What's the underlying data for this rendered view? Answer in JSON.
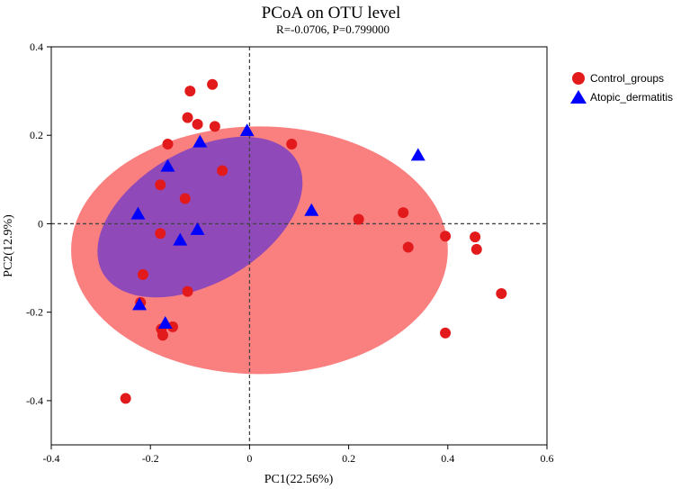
{
  "chart_data": {
    "type": "scatter",
    "title": "PCoA on OTU level",
    "subtitle": "R=-0.0706, P=0.799000",
    "xlabel": "PC1(22.56%)",
    "ylabel": "PC2(12.9%)",
    "xlim": [
      -0.4,
      0.6
    ],
    "ylim": [
      -0.5,
      0.4
    ],
    "xticks": [
      -0.4,
      -0.2,
      0,
      0.2,
      0.4,
      0.6
    ],
    "yticks": [
      -0.4,
      -0.2,
      0,
      0.2,
      0.4
    ],
    "xtick_labels": [
      "-0.4",
      "-0.2",
      "0",
      "0.2",
      "0.4",
      "0.6"
    ],
    "ytick_labels": [
      "-0.4",
      "-0.2",
      "0",
      "0.2",
      "0.4"
    ],
    "reference_lines": {
      "x": 0,
      "y": 0
    },
    "legend_position": "top-right, outside plot",
    "series": [
      {
        "name": "Control_groups",
        "marker": "circle",
        "color": "#e31a1c",
        "ellipse": {
          "center": [
            0.02,
            -0.06
          ],
          "semi_axes": [
            0.38,
            0.28
          ],
          "angle_deg": 0,
          "color": "#fa7f7f"
        },
        "points": [
          {
            "x": -0.12,
            "y": 0.3
          },
          {
            "x": -0.075,
            "y": 0.315
          },
          {
            "x": -0.125,
            "y": 0.24
          },
          {
            "x": -0.105,
            "y": 0.225
          },
          {
            "x": -0.07,
            "y": 0.22
          },
          {
            "x": -0.165,
            "y": 0.18
          },
          {
            "x": 0.085,
            "y": 0.18
          },
          {
            "x": -0.055,
            "y": 0.12
          },
          {
            "x": -0.18,
            "y": 0.088
          },
          {
            "x": -0.13,
            "y": 0.057
          },
          {
            "x": 0.31,
            "y": 0.025
          },
          {
            "x": 0.22,
            "y": 0.01
          },
          {
            "x": -0.18,
            "y": -0.022
          },
          {
            "x": 0.395,
            "y": -0.028
          },
          {
            "x": 0.455,
            "y": -0.03
          },
          {
            "x": 0.32,
            "y": -0.053
          },
          {
            "x": 0.458,
            "y": -0.058
          },
          {
            "x": -0.215,
            "y": -0.115
          },
          {
            "x": -0.125,
            "y": -0.153
          },
          {
            "x": 0.508,
            "y": -0.158
          },
          {
            "x": -0.22,
            "y": -0.178
          },
          {
            "x": -0.155,
            "y": -0.233
          },
          {
            "x": -0.178,
            "y": -0.238
          },
          {
            "x": -0.175,
            "y": -0.252
          },
          {
            "x": 0.395,
            "y": -0.247
          },
          {
            "x": -0.25,
            "y": -0.395
          }
        ]
      },
      {
        "name": "Atopic_dermatitis",
        "marker": "triangle",
        "color": "#0000ff",
        "ellipse": {
          "center": [
            -0.1,
            0.015
          ],
          "semi_axes": [
            0.226,
            0.15
          ],
          "angle_deg": 30,
          "color": "#7b3fc2"
        },
        "points": [
          {
            "x": -0.005,
            "y": 0.21
          },
          {
            "x": -0.1,
            "y": 0.185
          },
          {
            "x": -0.165,
            "y": 0.13
          },
          {
            "x": 0.34,
            "y": 0.155
          },
          {
            "x": 0.125,
            "y": 0.03
          },
          {
            "x": -0.225,
            "y": 0.022
          },
          {
            "x": -0.105,
            "y": -0.013
          },
          {
            "x": -0.14,
            "y": -0.037
          },
          {
            "x": -0.222,
            "y": -0.183
          },
          {
            "x": -0.17,
            "y": -0.225
          }
        ]
      }
    ]
  }
}
